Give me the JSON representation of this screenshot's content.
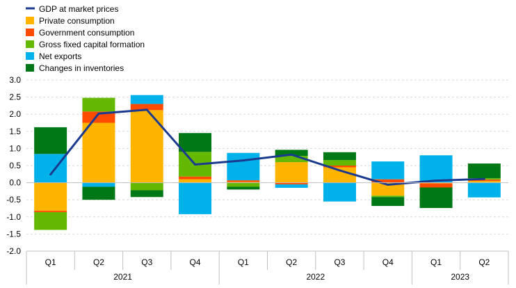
{
  "colors": {
    "gdp": "#1a3a8f",
    "private_consumption": "#ffb400",
    "government_consumption": "#ff4b00",
    "gross_fixed_capital_formation": "#65b800",
    "net_exports": "#00b1ea",
    "changes_in_inventories": "#007816",
    "grid": "#d9d9d9",
    "axis": "#bfbfbf"
  },
  "chart_data": {
    "type": "bar",
    "stacked": true,
    "title": "",
    "xlabel": "",
    "ylabel": "",
    "ylim": [
      -2.0,
      3.0
    ],
    "yticks": [
      "-2.0",
      "-1.5",
      "-1.0",
      "-0.5",
      "0.0",
      "0.5",
      "1.0",
      "1.5",
      "2.0",
      "2.5",
      "3.0"
    ],
    "grid": true,
    "legend_position": "top-left",
    "categories": [
      "Q1",
      "Q2",
      "Q3",
      "Q4",
      "Q1",
      "Q2",
      "Q3",
      "Q4",
      "Q1",
      "Q2"
    ],
    "years": [
      {
        "label": "2021",
        "start": 0,
        "end": 4
      },
      {
        "label": "2022",
        "start": 4,
        "end": 8
      },
      {
        "label": "2023",
        "start": 8,
        "end": 10
      }
    ],
    "series": [
      {
        "key": "private_consumption",
        "name": "Private consumption",
        "kind": "bar",
        "values": [
          -0.82,
          1.75,
          2.12,
          0.1,
          0.02,
          0.6,
          0.45,
          -0.38,
          -0.02,
          0.05
        ]
      },
      {
        "key": "government_consumption",
        "name": "Government consumption",
        "kind": "bar",
        "values": [
          -0.04,
          0.33,
          0.18,
          0.08,
          0.05,
          -0.05,
          0.05,
          0.1,
          -0.12,
          0.04
        ]
      },
      {
        "key": "gross_fixed_capital_formation",
        "name": "Gross fixed capital formation",
        "kind": "bar",
        "values": [
          -0.52,
          0.4,
          -0.22,
          0.72,
          -0.12,
          0.18,
          0.16,
          -0.04,
          0.0,
          0.04
        ]
      },
      {
        "key": "net_exports",
        "name": "Net exports",
        "kind": "bar",
        "values": [
          0.84,
          -0.12,
          0.26,
          -0.92,
          0.8,
          -0.1,
          -0.55,
          0.52,
          0.8,
          -0.43
        ]
      },
      {
        "key": "changes_in_inventories",
        "name": "Changes in inventories",
        "kind": "bar",
        "values": [
          0.78,
          -0.38,
          -0.2,
          0.55,
          -0.08,
          0.18,
          0.23,
          -0.26,
          -0.6,
          0.43
        ]
      },
      {
        "key": "gdp",
        "name": "GDP at market prices",
        "kind": "line",
        "values": [
          0.24,
          2.02,
          2.13,
          0.53,
          0.65,
          0.82,
          0.36,
          -0.06,
          0.06,
          0.11
        ]
      }
    ],
    "legend_order": [
      "gdp",
      "private_consumption",
      "government_consumption",
      "gross_fixed_capital_formation",
      "net_exports",
      "changes_in_inventories"
    ]
  }
}
